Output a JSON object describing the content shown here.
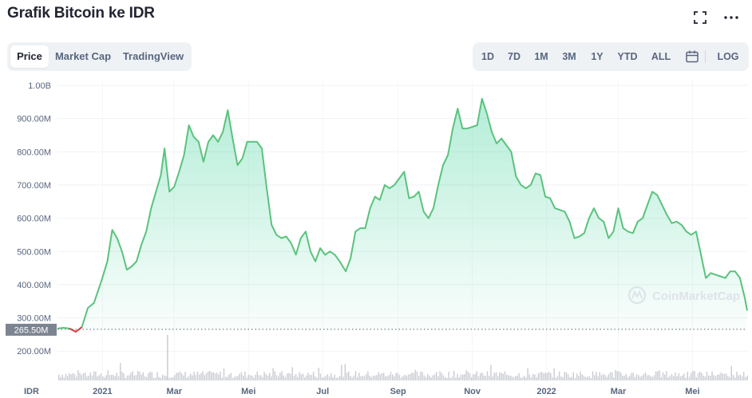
{
  "header": {
    "title": "Grafik Bitcoin ke IDR",
    "icons": [
      "fullscreen-icon",
      "more-icon"
    ]
  },
  "tabs_left": [
    {
      "label": "Price",
      "active": true
    },
    {
      "label": "Market Cap",
      "active": false
    },
    {
      "label": "TradingView",
      "active": false
    }
  ],
  "tabs_right": [
    {
      "label": "1D"
    },
    {
      "label": "7D"
    },
    {
      "label": "1M"
    },
    {
      "label": "3M"
    },
    {
      "label": "1Y"
    },
    {
      "label": "YTD"
    },
    {
      "label": "ALL"
    },
    {
      "label": "",
      "icon": "calendar-icon"
    },
    {
      "label": "LOG"
    }
  ],
  "watermark": "CoinMarketCap",
  "colors": {
    "line_up": "#5bc27d",
    "line_down": "#ea3943",
    "fill": "#16c784",
    "price_tag_bg": "#7d8491",
    "volume": "#c9ccd3"
  },
  "chart_data": {
    "type": "area",
    "currency_label": "IDR",
    "y_ticks": [
      "1.00B",
      "900.00M",
      "800.00M",
      "700.00M",
      "600.00M",
      "500.00M",
      "400.00M",
      "300.00M",
      "200.00M"
    ],
    "y_tick_values": [
      1000,
      900,
      800,
      700,
      600,
      500,
      400,
      300,
      200
    ],
    "y_unit": "M IDR",
    "ylim": [
      100,
      1000
    ],
    "x_ticks": [
      "2021",
      "Mar",
      "Mei",
      "Jul",
      "Sep",
      "Nov",
      "2022",
      "Mar",
      "Mei"
    ],
    "x_tick_values": [
      "2021-01-01",
      "2021-03-01",
      "2021-05-01",
      "2021-07-01",
      "2021-09-01",
      "2021-11-01",
      "2022-01-01",
      "2022-03-01",
      "2022-05-01"
    ],
    "xlim": [
      "2020-11-25",
      "2022-06-15"
    ],
    "baseline_label": "265.50M",
    "baseline_value": 265.5,
    "series": [
      {
        "points": [
          [
            "2020-11-25",
            268
          ],
          [
            "2020-11-30",
            270
          ],
          [
            "2020-12-05",
            268
          ],
          [
            "2020-12-10",
            258
          ],
          [
            "2020-12-15",
            272
          ],
          [
            "2020-12-20",
            330
          ],
          [
            "2020-12-25",
            345
          ],
          [
            "2020-12-31",
            410
          ],
          [
            "2021-01-05",
            470
          ],
          [
            "2021-01-09",
            565
          ],
          [
            "2021-01-13",
            540
          ],
          [
            "2021-01-17",
            500
          ],
          [
            "2021-01-21",
            445
          ],
          [
            "2021-01-25",
            455
          ],
          [
            "2021-01-29",
            470
          ],
          [
            "2021-02-02",
            520
          ],
          [
            "2021-02-06",
            560
          ],
          [
            "2021-02-10",
            630
          ],
          [
            "2021-02-14",
            680
          ],
          [
            "2021-02-18",
            730
          ],
          [
            "2021-02-21",
            810
          ],
          [
            "2021-02-25",
            680
          ],
          [
            "2021-03-01",
            695
          ],
          [
            "2021-03-05",
            740
          ],
          [
            "2021-03-09",
            790
          ],
          [
            "2021-03-13",
            880
          ],
          [
            "2021-03-17",
            845
          ],
          [
            "2021-03-21",
            830
          ],
          [
            "2021-03-25",
            770
          ],
          [
            "2021-03-29",
            830
          ],
          [
            "2021-04-02",
            850
          ],
          [
            "2021-04-06",
            830
          ],
          [
            "2021-04-10",
            860
          ],
          [
            "2021-04-14",
            925
          ],
          [
            "2021-04-18",
            840
          ],
          [
            "2021-04-22",
            760
          ],
          [
            "2021-04-26",
            780
          ],
          [
            "2021-04-30",
            830
          ],
          [
            "2021-05-04",
            830
          ],
          [
            "2021-05-08",
            830
          ],
          [
            "2021-05-12",
            810
          ],
          [
            "2021-05-16",
            690
          ],
          [
            "2021-05-20",
            580
          ],
          [
            "2021-05-24",
            550
          ],
          [
            "2021-05-28",
            540
          ],
          [
            "2021-06-01",
            545
          ],
          [
            "2021-06-05",
            525
          ],
          [
            "2021-06-09",
            490
          ],
          [
            "2021-06-13",
            540
          ],
          [
            "2021-06-17",
            560
          ],
          [
            "2021-06-21",
            500
          ],
          [
            "2021-06-25",
            470
          ],
          [
            "2021-06-29",
            510
          ],
          [
            "2021-07-03",
            490
          ],
          [
            "2021-07-07",
            500
          ],
          [
            "2021-07-11",
            490
          ],
          [
            "2021-07-15",
            470
          ],
          [
            "2021-07-20",
            440
          ],
          [
            "2021-07-24",
            480
          ],
          [
            "2021-07-28",
            560
          ],
          [
            "2021-08-01",
            570
          ],
          [
            "2021-08-05",
            570
          ],
          [
            "2021-08-09",
            630
          ],
          [
            "2021-08-13",
            665
          ],
          [
            "2021-08-17",
            655
          ],
          [
            "2021-08-21",
            700
          ],
          [
            "2021-08-25",
            690
          ],
          [
            "2021-08-29",
            700
          ],
          [
            "2021-09-02",
            720
          ],
          [
            "2021-09-06",
            740
          ],
          [
            "2021-09-10",
            660
          ],
          [
            "2021-09-14",
            665
          ],
          [
            "2021-09-18",
            680
          ],
          [
            "2021-09-22",
            620
          ],
          [
            "2021-09-26",
            600
          ],
          [
            "2021-09-30",
            630
          ],
          [
            "2021-10-04",
            700
          ],
          [
            "2021-10-08",
            760
          ],
          [
            "2021-10-12",
            790
          ],
          [
            "2021-10-16",
            870
          ],
          [
            "2021-10-20",
            930
          ],
          [
            "2021-10-24",
            870
          ],
          [
            "2021-10-28",
            870
          ],
          [
            "2021-11-01",
            875
          ],
          [
            "2021-11-05",
            880
          ],
          [
            "2021-11-09",
            960
          ],
          [
            "2021-11-13",
            915
          ],
          [
            "2021-11-17",
            860
          ],
          [
            "2021-11-21",
            825
          ],
          [
            "2021-11-25",
            840
          ],
          [
            "2021-11-29",
            820
          ],
          [
            "2021-12-03",
            800
          ],
          [
            "2021-12-07",
            725
          ],
          [
            "2021-12-11",
            700
          ],
          [
            "2021-12-15",
            690
          ],
          [
            "2021-12-19",
            700
          ],
          [
            "2021-12-23",
            735
          ],
          [
            "2021-12-27",
            730
          ],
          [
            "2021-12-31",
            665
          ],
          [
            "2022-01-04",
            660
          ],
          [
            "2022-01-08",
            630
          ],
          [
            "2022-01-12",
            625
          ],
          [
            "2022-01-16",
            620
          ],
          [
            "2022-01-20",
            590
          ],
          [
            "2022-01-24",
            540
          ],
          [
            "2022-01-28",
            545
          ],
          [
            "2022-02-01",
            555
          ],
          [
            "2022-02-05",
            600
          ],
          [
            "2022-02-09",
            630
          ],
          [
            "2022-02-13",
            600
          ],
          [
            "2022-02-17",
            590
          ],
          [
            "2022-02-21",
            540
          ],
          [
            "2022-02-25",
            560
          ],
          [
            "2022-03-01",
            630
          ],
          [
            "2022-03-05",
            570
          ],
          [
            "2022-03-09",
            560
          ],
          [
            "2022-03-13",
            555
          ],
          [
            "2022-03-17",
            590
          ],
          [
            "2022-03-21",
            600
          ],
          [
            "2022-03-25",
            640
          ],
          [
            "2022-03-29",
            680
          ],
          [
            "2022-04-02",
            670
          ],
          [
            "2022-04-06",
            640
          ],
          [
            "2022-04-10",
            610
          ],
          [
            "2022-04-14",
            585
          ],
          [
            "2022-04-18",
            590
          ],
          [
            "2022-04-22",
            580
          ],
          [
            "2022-04-26",
            560
          ],
          [
            "2022-04-30",
            550
          ],
          [
            "2022-05-04",
            560
          ],
          [
            "2022-05-08",
            490
          ],
          [
            "2022-05-12",
            420
          ],
          [
            "2022-05-16",
            435
          ],
          [
            "2022-05-20",
            430
          ],
          [
            "2022-05-24",
            425
          ],
          [
            "2022-05-28",
            420
          ],
          [
            "2022-06-01",
            440
          ],
          [
            "2022-06-05",
            440
          ],
          [
            "2022-06-09",
            420
          ],
          [
            "2022-06-13",
            360
          ],
          [
            "2022-06-15",
            322
          ]
        ]
      }
    ],
    "volume": {
      "shown": true,
      "spike_date": "2021-02-23"
    },
    "grid": true,
    "watermark_position": "bottom-right"
  }
}
